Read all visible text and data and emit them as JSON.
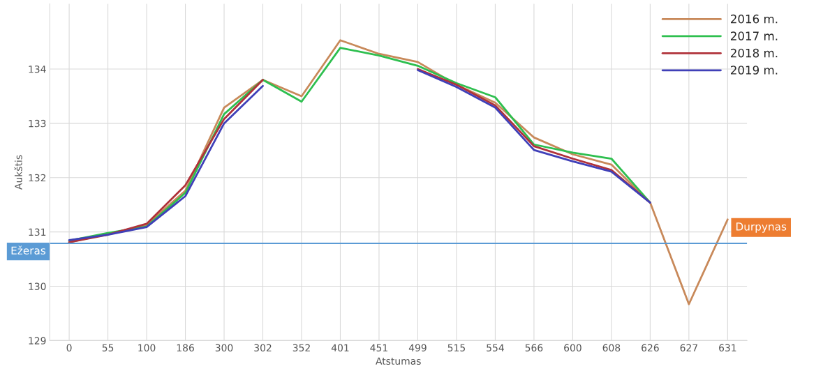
{
  "chart_data": {
    "type": "line",
    "xlabel": "Atstumas",
    "ylabel": "Aukštis",
    "categories": [
      "0",
      "55",
      "100",
      "186",
      "300",
      "302",
      "352",
      "401",
      "451",
      "499",
      "515",
      "554",
      "566",
      "600",
      "608",
      "626",
      "627",
      "631"
    ],
    "series": [
      {
        "name": "2016 m.",
        "color": "#c8895a",
        "values": [
          130.81,
          130.96,
          131.13,
          131.76,
          133.29,
          133.8,
          133.5,
          134.53,
          134.28,
          134.13,
          133.71,
          133.38,
          132.74,
          132.43,
          132.24,
          131.54,
          129.67,
          131.23
        ]
      },
      {
        "name": "2017 m.",
        "color": "#2ebf4f",
        "values": [
          130.84,
          130.98,
          131.1,
          131.72,
          133.17,
          133.8,
          133.4,
          134.39,
          134.25,
          134.06,
          133.74,
          133.48,
          132.61,
          132.46,
          132.35,
          131.54,
          null,
          null
        ]
      },
      {
        "name": "2018 m.",
        "color": "#b0323a",
        "values": [
          130.81,
          130.95,
          131.15,
          131.86,
          133.08,
          133.8,
          null,
          null,
          null,
          134.0,
          133.71,
          133.33,
          132.58,
          132.35,
          132.14,
          131.54,
          null,
          null
        ]
      },
      {
        "name": "2019 m.",
        "color": "#4040b8",
        "values": [
          130.85,
          130.95,
          131.09,
          131.66,
          133.0,
          133.69,
          null,
          null,
          null,
          133.98,
          133.67,
          133.29,
          132.51,
          132.3,
          132.11,
          131.54,
          null,
          null
        ]
      }
    ],
    "ylim": [
      129,
      135.2
    ],
    "yticks": [
      129,
      130,
      131,
      132,
      133,
      134
    ],
    "ref_lines": [
      {
        "axis": "y",
        "value": 130.79,
        "label": "Ežeras",
        "color": "#5b9bd5"
      }
    ],
    "annotations": [
      {
        "text": "Durpynas",
        "x": "631",
        "y": 131.23
      }
    ],
    "grid": true,
    "legend": "top right",
    "line_style": "solid",
    "marker": "none"
  }
}
